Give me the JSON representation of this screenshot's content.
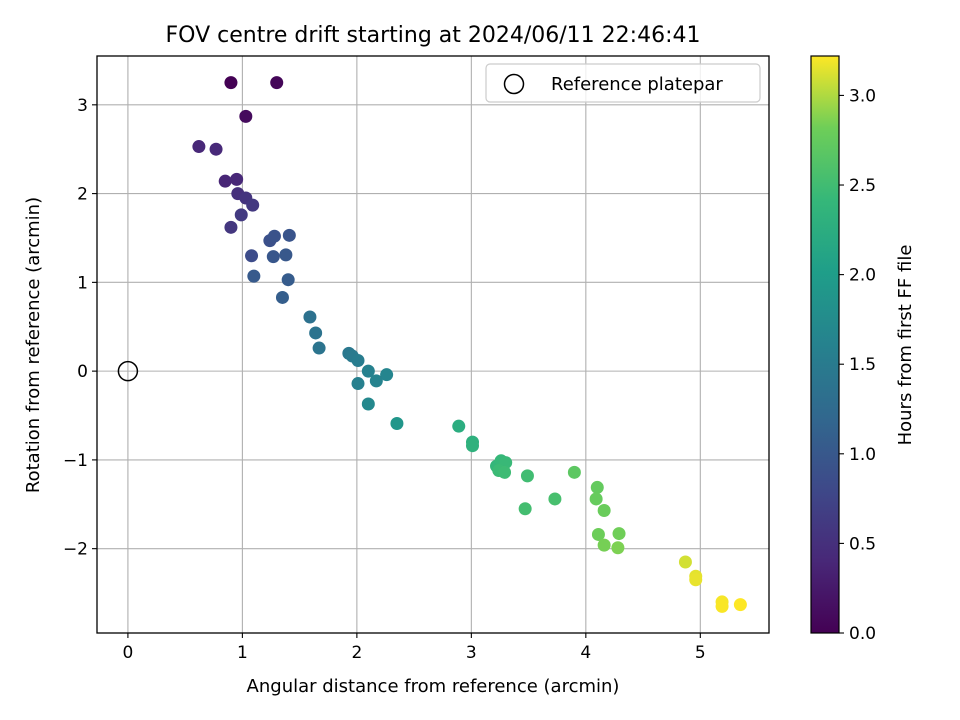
{
  "chart_data": {
    "type": "scatter",
    "title": "FOV centre drift starting at 2024/06/11 22:46:41",
    "xlabel": "Angular distance from reference (arcmin)",
    "ylabel": "Rotation from reference (arcmin)",
    "xlim": [
      -0.27,
      5.6
    ],
    "ylim": [
      -2.95,
      3.55
    ],
    "xticks": [
      0,
      1,
      2,
      3,
      4,
      5
    ],
    "yticks": [
      -2,
      -1,
      0,
      1,
      2,
      3
    ],
    "xtick_labels": [
      "0",
      "1",
      "2",
      "3",
      "4",
      "5"
    ],
    "ytick_labels": [
      "−2",
      "−1",
      "0",
      "1",
      "2",
      "3"
    ],
    "grid": true,
    "legend": {
      "placement": "top-right",
      "entries": [
        "Reference platepar"
      ]
    },
    "reference_point": {
      "x": 0,
      "y": 0
    },
    "colorbar": {
      "label": "Hours from first FF file",
      "min": 0.0,
      "max": 3.22,
      "colormap": "viridis",
      "ticks": [
        0.0,
        0.5,
        1.0,
        1.5,
        2.0,
        2.5,
        3.0
      ],
      "tick_labels": [
        "0.0",
        "0.5",
        "1.0",
        "1.5",
        "2.0",
        "2.5",
        "3.0"
      ]
    },
    "points": [
      {
        "x": 0.9,
        "y": 3.25,
        "t": 0.0
      },
      {
        "x": 1.3,
        "y": 3.25,
        "t": 0.05
      },
      {
        "x": 1.03,
        "y": 2.87,
        "t": 0.1
      },
      {
        "x": 0.62,
        "y": 2.53,
        "t": 0.4
      },
      {
        "x": 0.77,
        "y": 2.5,
        "t": 0.42
      },
      {
        "x": 0.85,
        "y": 2.14,
        "t": 0.38
      },
      {
        "x": 0.95,
        "y": 2.16,
        "t": 0.4
      },
      {
        "x": 0.96,
        "y": 2.0,
        "t": 0.5
      },
      {
        "x": 1.03,
        "y": 1.95,
        "t": 0.55
      },
      {
        "x": 1.09,
        "y": 1.87,
        "t": 0.6
      },
      {
        "x": 0.99,
        "y": 1.76,
        "t": 0.62
      },
      {
        "x": 0.9,
        "y": 1.62,
        "t": 0.58
      },
      {
        "x": 1.24,
        "y": 1.47,
        "t": 0.9
      },
      {
        "x": 1.28,
        "y": 1.52,
        "t": 0.92
      },
      {
        "x": 1.41,
        "y": 1.53,
        "t": 0.95
      },
      {
        "x": 1.08,
        "y": 1.3,
        "t": 0.85
      },
      {
        "x": 1.27,
        "y": 1.29,
        "t": 0.98
      },
      {
        "x": 1.38,
        "y": 1.31,
        "t": 1.0
      },
      {
        "x": 1.1,
        "y": 1.07,
        "t": 1.02
      },
      {
        "x": 1.4,
        "y": 1.03,
        "t": 1.05
      },
      {
        "x": 1.35,
        "y": 0.83,
        "t": 1.08
      },
      {
        "x": 1.59,
        "y": 0.61,
        "t": 1.35
      },
      {
        "x": 1.64,
        "y": 0.43,
        "t": 1.38
      },
      {
        "x": 1.67,
        "y": 0.26,
        "t": 1.4
      },
      {
        "x": 1.93,
        "y": 0.2,
        "t": 1.45
      },
      {
        "x": 1.96,
        "y": 0.17,
        "t": 1.48
      },
      {
        "x": 2.01,
        "y": 0.12,
        "t": 1.52
      },
      {
        "x": 2.1,
        "y": 0.0,
        "t": 1.6
      },
      {
        "x": 2.26,
        "y": -0.04,
        "t": 1.65
      },
      {
        "x": 2.17,
        "y": -0.11,
        "t": 1.62
      },
      {
        "x": 2.01,
        "y": -0.14,
        "t": 1.58
      },
      {
        "x": 2.1,
        "y": -0.37,
        "t": 1.7
      },
      {
        "x": 2.35,
        "y": -0.59,
        "t": 1.9
      },
      {
        "x": 2.89,
        "y": -0.62,
        "t": 2.25
      },
      {
        "x": 3.01,
        "y": -0.8,
        "t": 2.3
      },
      {
        "x": 3.01,
        "y": -0.84,
        "t": 2.32
      },
      {
        "x": 3.22,
        "y": -1.07,
        "t": 2.4
      },
      {
        "x": 3.26,
        "y": -1.01,
        "t": 2.42
      },
      {
        "x": 3.3,
        "y": -1.03,
        "t": 2.44
      },
      {
        "x": 3.24,
        "y": -1.12,
        "t": 2.46
      },
      {
        "x": 3.29,
        "y": -1.14,
        "t": 2.48
      },
      {
        "x": 3.49,
        "y": -1.18,
        "t": 2.5
      },
      {
        "x": 3.9,
        "y": -1.14,
        "t": 2.7
      },
      {
        "x": 3.47,
        "y": -1.55,
        "t": 2.52
      },
      {
        "x": 3.73,
        "y": -1.44,
        "t": 2.55
      },
      {
        "x": 4.1,
        "y": -1.31,
        "t": 2.75
      },
      {
        "x": 4.09,
        "y": -1.44,
        "t": 2.76
      },
      {
        "x": 4.16,
        "y": -1.57,
        "t": 2.78
      },
      {
        "x": 4.11,
        "y": -1.84,
        "t": 2.8
      },
      {
        "x": 4.29,
        "y": -1.83,
        "t": 2.82
      },
      {
        "x": 4.16,
        "y": -1.96,
        "t": 2.84
      },
      {
        "x": 4.28,
        "y": -1.99,
        "t": 2.86
      },
      {
        "x": 4.87,
        "y": -2.15,
        "t": 3.1
      },
      {
        "x": 4.96,
        "y": -2.31,
        "t": 3.15
      },
      {
        "x": 4.96,
        "y": -2.35,
        "t": 3.16
      },
      {
        "x": 5.19,
        "y": -2.6,
        "t": 3.2
      },
      {
        "x": 5.19,
        "y": -2.65,
        "t": 3.21
      },
      {
        "x": 5.35,
        "y": -2.63,
        "t": 3.22
      }
    ]
  }
}
